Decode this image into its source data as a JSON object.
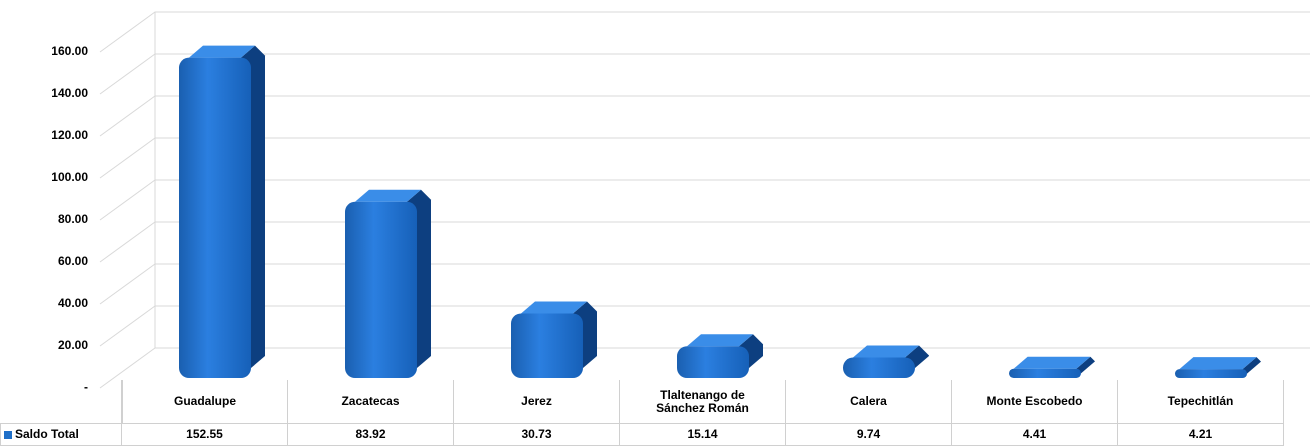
{
  "chart_data": {
    "type": "bar",
    "categories": [
      "Guadalupe",
      "Zacatecas",
      "Jerez",
      "Tlaltenango de Sánchez Román",
      "Calera",
      "Monte Escobedo",
      "Tepechitlán"
    ],
    "series": [
      {
        "name": "Saldo Total",
        "color": "#1f6fc8",
        "values": [
          152.55,
          83.92,
          30.73,
          15.14,
          9.74,
          4.41,
          4.21
        ]
      }
    ],
    "ylim": [
      0,
      160
    ],
    "yticks": [
      {
        "value": 0,
        "label": "-"
      },
      {
        "value": 20,
        "label": "20.00"
      },
      {
        "value": 40,
        "label": "40.00"
      },
      {
        "value": 60,
        "label": "60.00"
      },
      {
        "value": 80,
        "label": "80.00"
      },
      {
        "value": 100,
        "label": "100.00"
      },
      {
        "value": 120,
        "label": "120.00"
      },
      {
        "value": 140,
        "label": "140.00"
      },
      {
        "value": 160,
        "label": "160.00"
      }
    ],
    "grid": true
  }
}
